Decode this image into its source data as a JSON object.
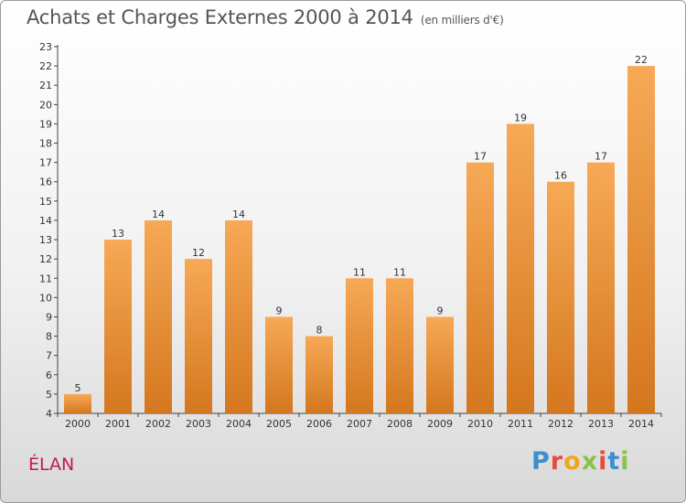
{
  "header": {
    "title": "Achats et Charges Externes 2000 à 2014",
    "subtitle": "(en milliers d'€)"
  },
  "footer": {
    "commune": "ÉLAN",
    "logo_letters": [
      "P",
      "r",
      "o",
      "x",
      "i",
      "t",
      "i"
    ]
  },
  "colors": {
    "bar_top": "#f7a956",
    "bar_bottom": "#d4771f",
    "commune_text": "#c2185b"
  },
  "chart_data": {
    "type": "bar",
    "categories": [
      "2000",
      "2001",
      "2002",
      "2003",
      "2004",
      "2005",
      "2006",
      "2007",
      "2008",
      "2009",
      "2010",
      "2011",
      "2012",
      "2013",
      "2014"
    ],
    "values": [
      5,
      13,
      14,
      12,
      14,
      9,
      8,
      11,
      11,
      9,
      17,
      19,
      16,
      17,
      22
    ],
    "title": "Achats et Charges Externes 2000 à 2014",
    "xlabel": "",
    "ylabel": "",
    "ylim": [
      4,
      23
    ],
    "yticks": [
      4,
      5,
      6,
      7,
      8,
      9,
      10,
      11,
      12,
      13,
      14,
      15,
      16,
      17,
      18,
      19,
      20,
      21,
      22,
      23
    ],
    "grid": false,
    "data_labels": true
  }
}
